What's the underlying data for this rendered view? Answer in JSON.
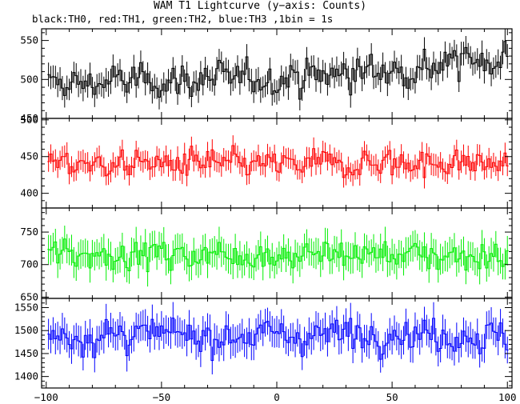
{
  "title": "WAM T1 Lightcurve (y−axis: Counts)",
  "subtitle": "black:TH0, red:TH1, green:TH2, blue:TH3 ,1bin = 1s",
  "chart_data": {
    "type": "line",
    "style": "histogram step with vertical error bars, 4 stacked panels sharing the x axis",
    "xlim": [
      -102,
      102
    ],
    "x_ticks": [
      -100,
      -50,
      0,
      50,
      100
    ],
    "x_tick_labels": [
      "−100",
      "−50",
      "0",
      "50",
      "100"
    ],
    "x_start": -99,
    "x_step": 1,
    "panels": [
      {
        "name": "TH0",
        "color": "#000000",
        "ylim": [
          450,
          565
        ],
        "y_ticks": [
          450,
          500,
          550
        ],
        "y_tick_labels": [
          "450",
          "500",
          "550"
        ],
        "trend": [
          [
            -99,
            493
          ],
          [
            -60,
            498
          ],
          [
            -20,
            500
          ],
          [
            20,
            505
          ],
          [
            60,
            515
          ],
          [
            99,
            530
          ]
        ],
        "noise": 14,
        "error": 15
      },
      {
        "name": "TH1",
        "color": "#ff0000",
        "ylim": [
          380,
          502
        ],
        "y_ticks": [
          400,
          450,
          500
        ],
        "y_tick_labels": [
          "400",
          "450",
          "500"
        ],
        "trend": [
          [
            -99,
            440
          ],
          [
            -50,
            440
          ],
          [
            0,
            438
          ],
          [
            50,
            442
          ],
          [
            99,
            440
          ]
        ],
        "noise": 12,
        "error": 14
      },
      {
        "name": "TH2",
        "color": "#00ee00",
        "ylim": [
          648,
          787
        ],
        "y_ticks": [
          650,
          700,
          750
        ],
        "y_tick_labels": [
          "650",
          "700",
          "750"
        ],
        "trend": [
          [
            -99,
            718
          ],
          [
            -50,
            716
          ],
          [
            0,
            715
          ],
          [
            50,
            716
          ],
          [
            99,
            712
          ]
        ],
        "noise": 14,
        "error": 22
      },
      {
        "name": "TH3",
        "color": "#0000ff",
        "ylim": [
          1375,
          1570
        ],
        "y_ticks": [
          1400,
          1450,
          1500,
          1550
        ],
        "y_tick_labels": [
          "1400",
          "1450",
          "1500",
          "1550"
        ],
        "trend": [
          [
            -99,
            1488
          ],
          [
            -50,
            1490
          ],
          [
            0,
            1490
          ],
          [
            50,
            1495
          ],
          [
            99,
            1485
          ]
        ],
        "noise": 22,
        "error": 32
      }
    ]
  }
}
